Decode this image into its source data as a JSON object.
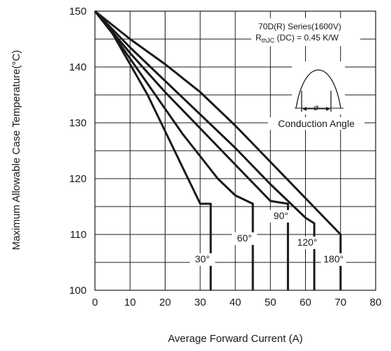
{
  "chart_data": {
    "type": "line",
    "xlabel": "Average Forward Current (A)",
    "ylabel": "Maximum Allowable Case Temperature(°C)",
    "xlim": [
      0,
      80
    ],
    "ylim": [
      100,
      150
    ],
    "xticks": [
      0,
      10,
      20,
      30,
      40,
      50,
      60,
      70,
      80
    ],
    "yticks": [
      100,
      110,
      120,
      130,
      140,
      150
    ],
    "grid": true,
    "annotations": {
      "series_line": "70D(R) Series(1600V)",
      "rth_symbol": "R",
      "rth_subscript": "thJC",
      "rth_value": " (DC) = 0.45 K/W",
      "conduction_angle": "Conduction Angle",
      "phi": "ø"
    },
    "series": [
      {
        "name": "30°",
        "x": [
          0,
          5,
          10,
          15,
          20,
          25,
          30,
          33,
          33
        ],
        "y": [
          150,
          146,
          140.5,
          135,
          128.5,
          122,
          115.5,
          115.5,
          100
        ]
      },
      {
        "name": "60°",
        "x": [
          0,
          5,
          10,
          15,
          20,
          25,
          30,
          35,
          40,
          45,
          45
        ],
        "y": [
          150,
          146,
          141.5,
          137,
          132.5,
          128,
          124,
          120,
          117,
          115.5,
          100
        ]
      },
      {
        "name": "90°",
        "x": [
          0,
          10,
          20,
          30,
          40,
          50,
          55,
          55
        ],
        "y": [
          150,
          142.5,
          135.5,
          129,
          122.5,
          116,
          115.5,
          100
        ]
      },
      {
        "name": "120°",
        "x": [
          0,
          10,
          20,
          30,
          40,
          50,
          60,
          62.5,
          62.5
        ],
        "y": [
          150,
          143.5,
          137.5,
          131.5,
          125.5,
          119,
          113,
          112,
          100
        ]
      },
      {
        "name": "180°",
        "x": [
          0,
          10,
          20,
          30,
          40,
          50,
          60,
          70,
          70
        ],
        "y": [
          150,
          145,
          140.5,
          135.5,
          129.5,
          123,
          116.5,
          110,
          100
        ]
      }
    ]
  }
}
